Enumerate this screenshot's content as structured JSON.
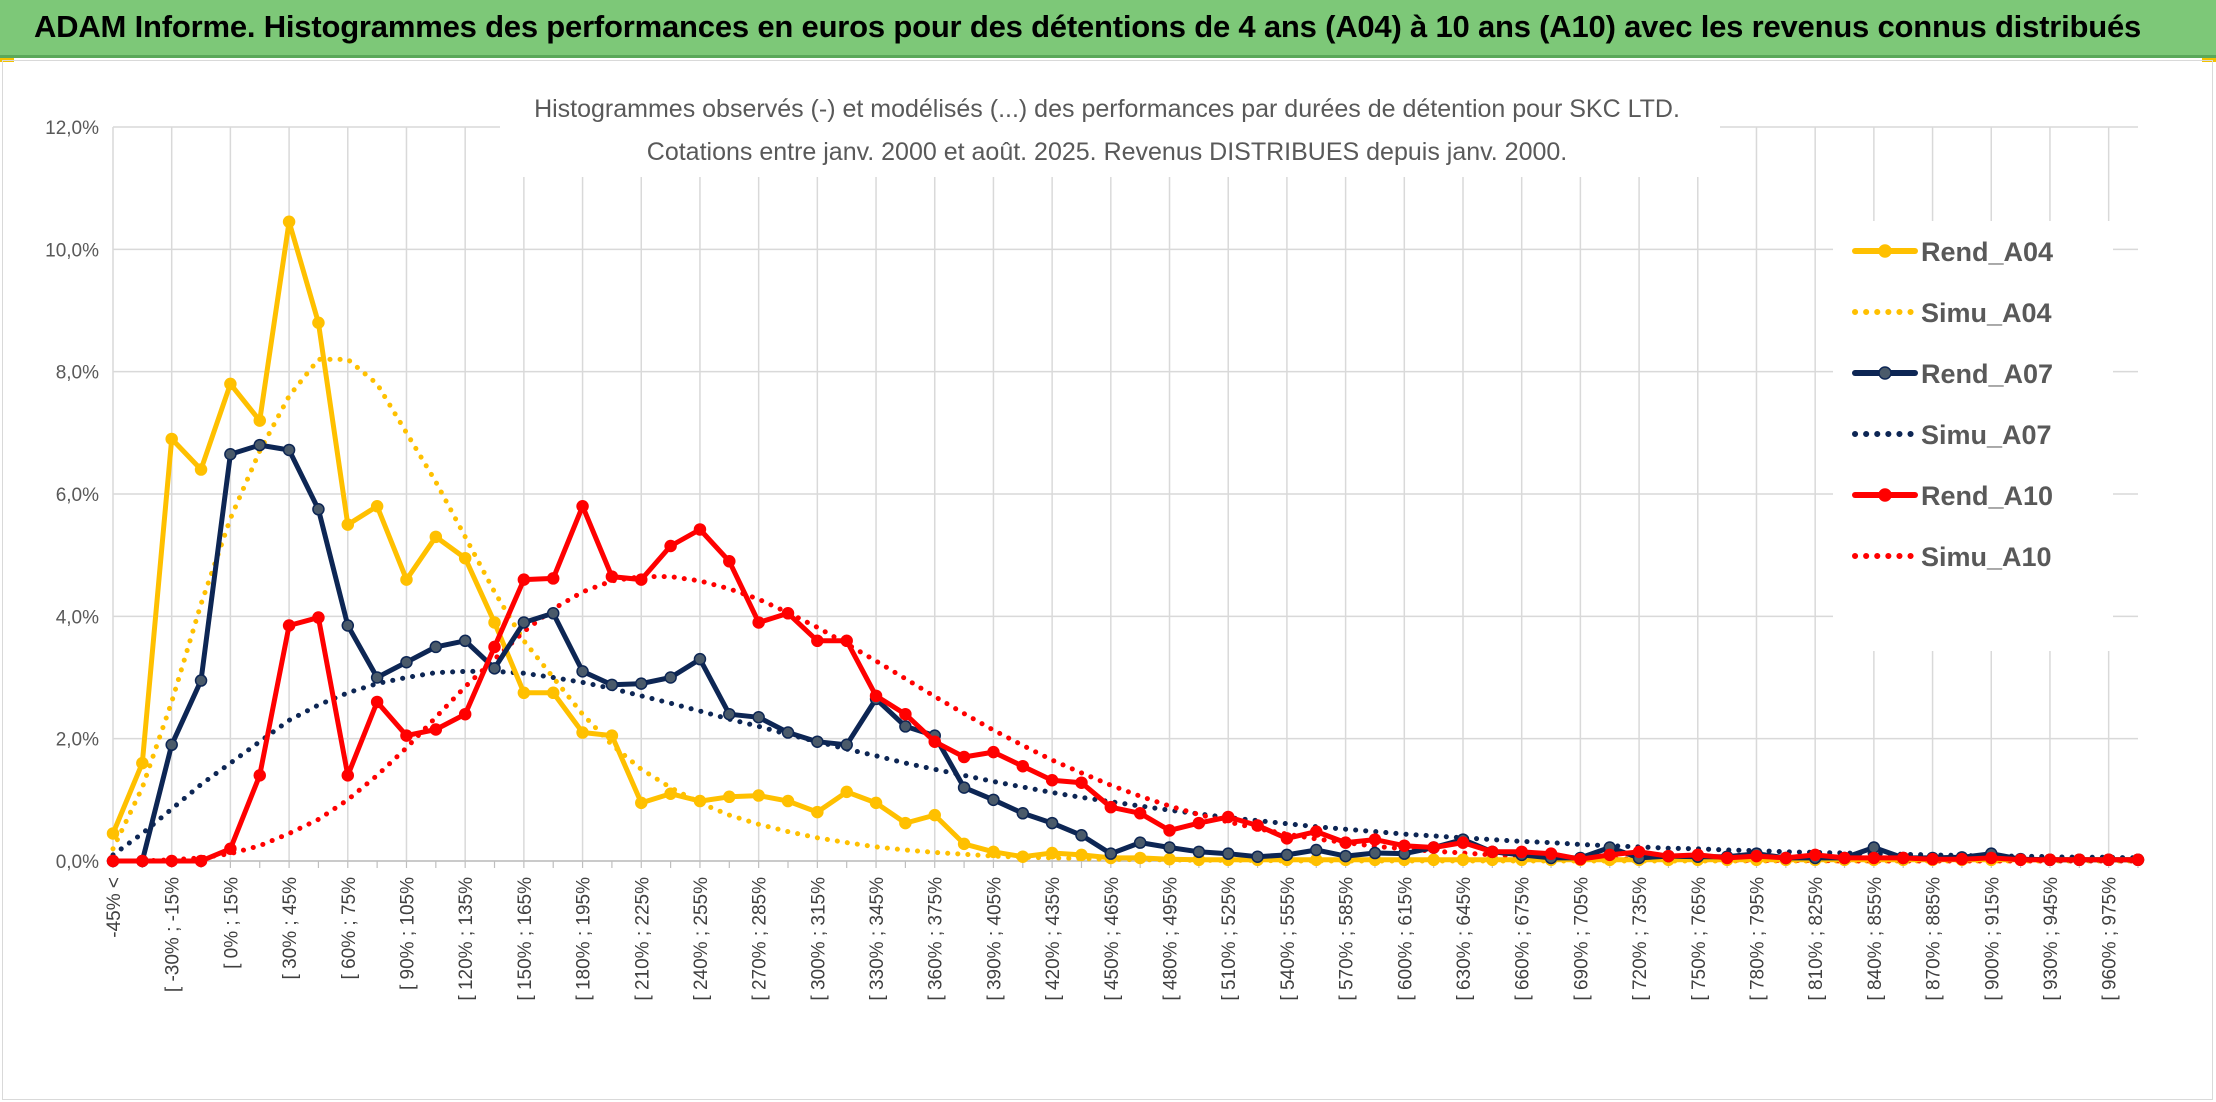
{
  "banner": {
    "title": "ADAM Informe. Histogrammes des performances en euros pour des détentions de 4 ans (A04) à 10 ans (A10) avec les revenus connus distribués"
  },
  "colors": {
    "banner": "#7dc878",
    "A04": "#ffc000",
    "A07": "#0d2654",
    "A10": "#ff0000",
    "A07_marker": "#4a5a6a",
    "grid": "#d9d9d9"
  },
  "chart_data": {
    "type": "line",
    "title_lines": [
      "Histogrammes observés (-) et modélisés (...) des performances par durées de détention pour SKC LTD.",
      "Cotations entre janv. 2000 et août. 2025. Revenus DISTRIBUES depuis janv. 2000."
    ],
    "ylim": [
      0,
      12
    ],
    "yticks": [
      "0,0%",
      "2,0%",
      "4,0%",
      "6,0%",
      "8,0%",
      "10,0%",
      "12,0%"
    ],
    "grid": true,
    "legend_position": "right",
    "categories_labeled": [
      "-45% <",
      "[ -30% ; -15%",
      "[ 0% ; 15%",
      "[ 30% ; 45%",
      "[ 60% ; 75%",
      "[ 90% ; 105%",
      "[ 120% ; 135%",
      "[ 150% ; 165%",
      "[ 180% ; 195%",
      "[ 210% ; 225%",
      "[ 240% ; 255%",
      "[ 270% ; 285%",
      "[ 300% ; 315%",
      "[ 330% ; 345%",
      "[ 360% ; 375%",
      "[ 390% ; 405%",
      "[ 420% ; 435%",
      "[ 450% ; 465%",
      "[ 480% ; 495%",
      "[ 510% ; 525%",
      "[ 540% ; 555%",
      "[ 570% ; 585%",
      "[ 600% ; 615%",
      "[ 630% ; 645%",
      "[ 660% ; 675%",
      "[ 690% ; 705%",
      "[ 720% ; 735%",
      "[ 750% ; 765%",
      "[ 780% ; 795%",
      "[ 810% ; 825%",
      "[ 840% ; 855%",
      "[ 870% ; 885%",
      "[ 900% ; 915%",
      "[ 930% ; 945%",
      "[ 960% ; 975%"
    ],
    "series": [
      {
        "name": "Rend_A04",
        "color": "#ffc000",
        "style": "solid",
        "markers": true,
        "values": [
          0.45,
          1.6,
          6.9,
          6.4,
          7.8,
          7.2,
          10.45,
          8.8,
          5.5,
          5.8,
          4.6,
          5.3,
          4.95,
          3.9,
          2.75,
          2.75,
          2.1,
          2.05,
          0.95,
          1.1,
          0.98,
          1.05,
          1.07,
          0.98,
          0.8,
          1.13,
          0.95,
          0.62,
          0.75,
          0.28,
          0.15,
          0.07,
          0.13,
          0.1,
          0.05,
          0.05,
          0.03,
          0.02,
          0.02,
          0.02,
          0.02,
          0.02,
          0.02,
          0.02,
          0.02,
          0.02,
          0.02,
          0.02,
          0.02,
          0.02,
          0.02,
          0.02,
          0.02,
          0.02,
          0.02,
          0.02,
          0.02,
          0.02,
          0.02,
          0.02,
          0.02,
          0.02,
          0.02,
          0.02,
          0.02,
          0.02,
          0.02,
          0.02,
          0.02,
          0.02
        ]
      },
      {
        "name": "Simu_A04",
        "color": "#ffc000",
        "style": "dotted",
        "markers": false,
        "values": [
          0.2,
          1.2,
          2.6,
          4.2,
          5.6,
          6.7,
          7.6,
          8.2,
          8.2,
          7.8,
          7.0,
          6.2,
          5.3,
          4.4,
          3.6,
          3.0,
          2.4,
          1.9,
          1.5,
          1.2,
          0.95,
          0.75,
          0.6,
          0.48,
          0.38,
          0.3,
          0.23,
          0.18,
          0.14,
          0.11,
          0.08,
          0.06,
          0.05,
          0.04,
          0.03,
          0.02,
          0.02,
          0.01,
          0.01,
          0.01,
          0.0,
          0.0,
          0.0,
          0.0,
          0.0,
          0.0,
          0.0,
          0.0,
          0.0,
          0.0,
          0.0,
          0.0,
          0.0,
          0.0,
          0.0,
          0.0,
          0.0,
          0.0,
          0.0,
          0.0,
          0.0,
          0.0,
          0.0,
          0.0,
          0.0,
          0.0,
          0.0,
          0.0,
          0.0,
          0.0
        ]
      },
      {
        "name": "Rend_A07",
        "color": "#0d2654",
        "style": "solid",
        "markers": true,
        "values": [
          0.0,
          0.0,
          1.9,
          2.95,
          6.65,
          6.8,
          6.72,
          5.75,
          3.85,
          3.0,
          3.25,
          3.5,
          3.6,
          3.15,
          3.9,
          4.05,
          3.1,
          2.88,
          2.9,
          3.0,
          3.3,
          2.4,
          2.35,
          2.1,
          1.95,
          1.9,
          2.65,
          2.2,
          2.05,
          1.2,
          1.0,
          0.78,
          0.62,
          0.42,
          0.12,
          0.3,
          0.22,
          0.15,
          0.12,
          0.07,
          0.1,
          0.18,
          0.08,
          0.13,
          0.12,
          0.22,
          0.35,
          0.15,
          0.1,
          0.05,
          0.05,
          0.22,
          0.05,
          0.08,
          0.07,
          0.07,
          0.12,
          0.05,
          0.05,
          0.05,
          0.22,
          0.05,
          0.05,
          0.06,
          0.12,
          0.03,
          0.02,
          0.02,
          0.02,
          0.02
        ]
      },
      {
        "name": "Simu_A07",
        "color": "#0d2654",
        "style": "dotted",
        "markers": false,
        "values": [
          0.1,
          0.45,
          0.85,
          1.25,
          1.6,
          1.95,
          2.3,
          2.55,
          2.75,
          2.9,
          3.0,
          3.08,
          3.1,
          3.1,
          3.07,
          3.0,
          2.92,
          2.82,
          2.7,
          2.58,
          2.45,
          2.32,
          2.2,
          2.07,
          1.95,
          1.83,
          1.72,
          1.6,
          1.5,
          1.4,
          1.3,
          1.21,
          1.12,
          1.04,
          0.97,
          0.9,
          0.83,
          0.77,
          0.71,
          0.66,
          0.61,
          0.56,
          0.52,
          0.48,
          0.44,
          0.41,
          0.38,
          0.35,
          0.32,
          0.3,
          0.27,
          0.25,
          0.23,
          0.21,
          0.2,
          0.18,
          0.17,
          0.15,
          0.14,
          0.13,
          0.12,
          0.11,
          0.1,
          0.09,
          0.08,
          0.08,
          0.07,
          0.06,
          0.06,
          0.05
        ]
      },
      {
        "name": "Rend_A10",
        "color": "#ff0000",
        "style": "solid",
        "markers": true,
        "values": [
          0.0,
          0.0,
          0.0,
          0.0,
          0.2,
          1.4,
          3.85,
          3.98,
          1.4,
          2.6,
          2.05,
          2.15,
          2.4,
          3.5,
          4.6,
          4.62,
          5.8,
          4.65,
          4.6,
          5.15,
          5.42,
          4.9,
          3.9,
          4.05,
          3.6,
          3.6,
          2.7,
          2.4,
          1.95,
          1.7,
          1.78,
          1.55,
          1.32,
          1.28,
          0.88,
          0.78,
          0.5,
          0.62,
          0.72,
          0.58,
          0.37,
          0.48,
          0.3,
          0.35,
          0.25,
          0.22,
          0.3,
          0.15,
          0.15,
          0.12,
          0.03,
          0.1,
          0.15,
          0.08,
          0.1,
          0.05,
          0.08,
          0.05,
          0.1,
          0.05,
          0.05,
          0.05,
          0.03,
          0.03,
          0.05,
          0.02,
          0.02,
          0.02,
          0.02,
          0.02
        ]
      },
      {
        "name": "Simu_A10",
        "color": "#ff0000",
        "style": "dotted",
        "markers": false,
        "values": [
          0.0,
          0.0,
          0.02,
          0.05,
          0.12,
          0.25,
          0.45,
          0.68,
          1.0,
          1.4,
          1.85,
          2.35,
          2.85,
          3.3,
          3.75,
          4.12,
          4.4,
          4.58,
          4.65,
          4.65,
          4.58,
          4.45,
          4.28,
          4.06,
          3.82,
          3.55,
          3.27,
          2.98,
          2.69,
          2.41,
          2.14,
          1.89,
          1.65,
          1.44,
          1.24,
          1.06,
          0.9,
          0.76,
          0.64,
          0.53,
          0.44,
          0.36,
          0.3,
          0.24,
          0.2,
          0.16,
          0.13,
          0.1,
          0.08,
          0.07,
          0.05,
          0.04,
          0.03,
          0.03,
          0.02,
          0.02,
          0.01,
          0.01,
          0.01,
          0.0,
          0.0,
          0.0,
          0.0,
          0.0,
          0.0,
          0.0,
          0.0,
          0.0,
          0.0,
          0.0
        ]
      }
    ]
  }
}
